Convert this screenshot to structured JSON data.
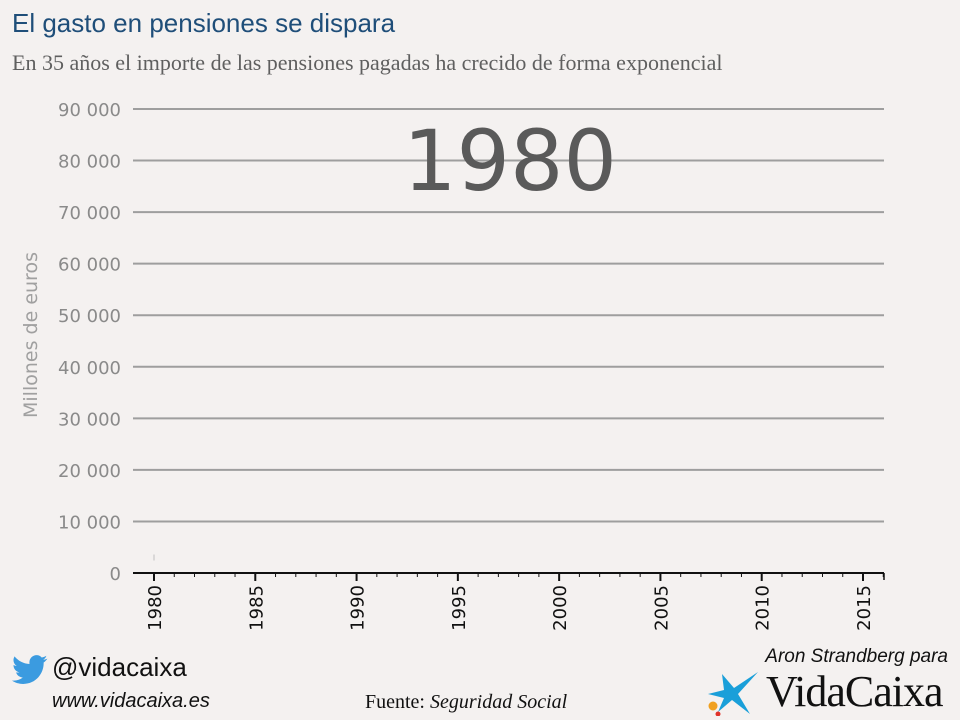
{
  "header": {
    "title": "El gasto en pensiones se dispara",
    "subtitle": "En 35 años el importe de las pensiones pagadas ha crecido de forma exponencial"
  },
  "chart_data": {
    "type": "line",
    "ylabel": "Millones de euros",
    "ylim": [
      0,
      90000
    ],
    "yticks": [
      0,
      10000,
      20000,
      30000,
      40000,
      50000,
      60000,
      70000,
      80000,
      90000
    ],
    "ytick_labels": [
      "0",
      "10 000",
      "20 000",
      "30 000",
      "40 000",
      "50 000",
      "60 000",
      "70 000",
      "80 000",
      "90 000"
    ],
    "xlim": [
      1980,
      2016
    ],
    "xticks": [
      1980,
      1985,
      1990,
      1995,
      2000,
      2005,
      2010,
      2015
    ],
    "xtick_labels": [
      "1980",
      "1985",
      "1990",
      "1995",
      "2000",
      "2005",
      "2010",
      "2015"
    ],
    "current_year_label": "1980",
    "series": [
      {
        "x": [
          1980
        ],
        "values": [
          3000
        ]
      }
    ],
    "grid": true,
    "colors": {
      "grid": "#9e9e9e",
      "axis_text": "#8a8a8a",
      "year": "#5a5a5a",
      "line": "#c0c0c0"
    }
  },
  "footer": {
    "handle": "@vidacaixa",
    "url": "www.vidacaixa.es",
    "source_prefix": "Fuente: ",
    "source_name": "Seguridad Social",
    "credit": "Aron Strandberg para",
    "brand": "VidaCaixa",
    "icons": [
      "twitter-bird-icon",
      "caixa-star-icon"
    ]
  }
}
